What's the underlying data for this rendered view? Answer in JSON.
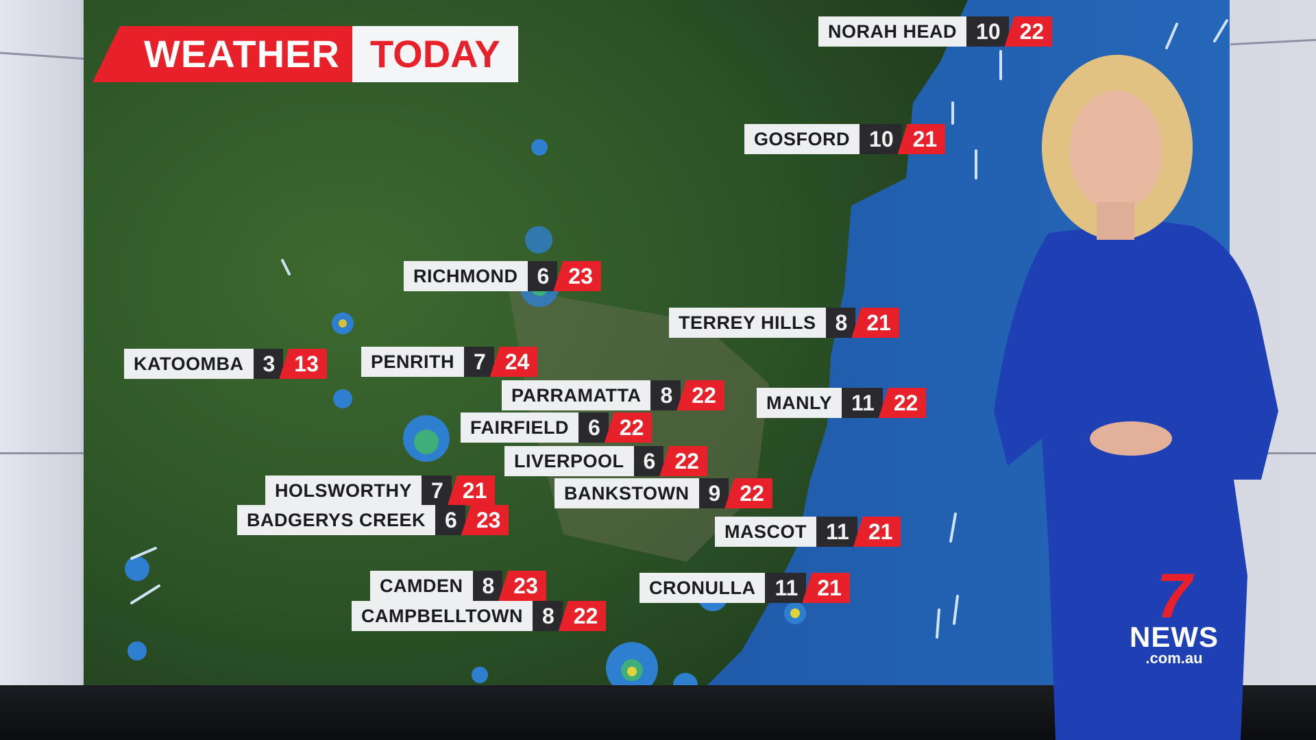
{
  "graphic": {
    "title_left": "WEATHER",
    "title_right": "TODAY"
  },
  "locations": [
    {
      "name": "NORAH HEAD",
      "min": "10",
      "max": "22"
    },
    {
      "name": "GOSFORD",
      "min": "10",
      "max": "21"
    },
    {
      "name": "RICHMOND",
      "min": "6",
      "max": "23"
    },
    {
      "name": "TERREY HILLS",
      "min": "8",
      "max": "21"
    },
    {
      "name": "KATOOMBA",
      "min": "3",
      "max": "13"
    },
    {
      "name": "PENRITH",
      "min": "7",
      "max": "24"
    },
    {
      "name": "PARRAMATTA",
      "min": "8",
      "max": "22"
    },
    {
      "name": "MANLY",
      "min": "11",
      "max": "22"
    },
    {
      "name": "FAIRFIELD",
      "min": "6",
      "max": "22"
    },
    {
      "name": "LIVERPOOL",
      "min": "6",
      "max": "22"
    },
    {
      "name": "HOLSWORTHY",
      "min": "7",
      "max": "21"
    },
    {
      "name": "BANKSTOWN",
      "min": "9",
      "max": "22"
    },
    {
      "name": "BADGERYS CREEK",
      "min": "6",
      "max": "23"
    },
    {
      "name": "MASCOT",
      "min": "11",
      "max": "21"
    },
    {
      "name": "CAMDEN",
      "min": "8",
      "max": "23"
    },
    {
      "name": "CRONULLA",
      "min": "11",
      "max": "21"
    },
    {
      "name": "CAMPBELLTOWN",
      "min": "8",
      "max": "22"
    }
  ],
  "logo": {
    "mark": "7",
    "name": "NEWS",
    "domain": ".com.au"
  },
  "colors": {
    "accent_red": "#e8202a",
    "ocean": "#1f5aa8",
    "land": "#2f5a2a",
    "min_box": "#2a2a2e"
  }
}
